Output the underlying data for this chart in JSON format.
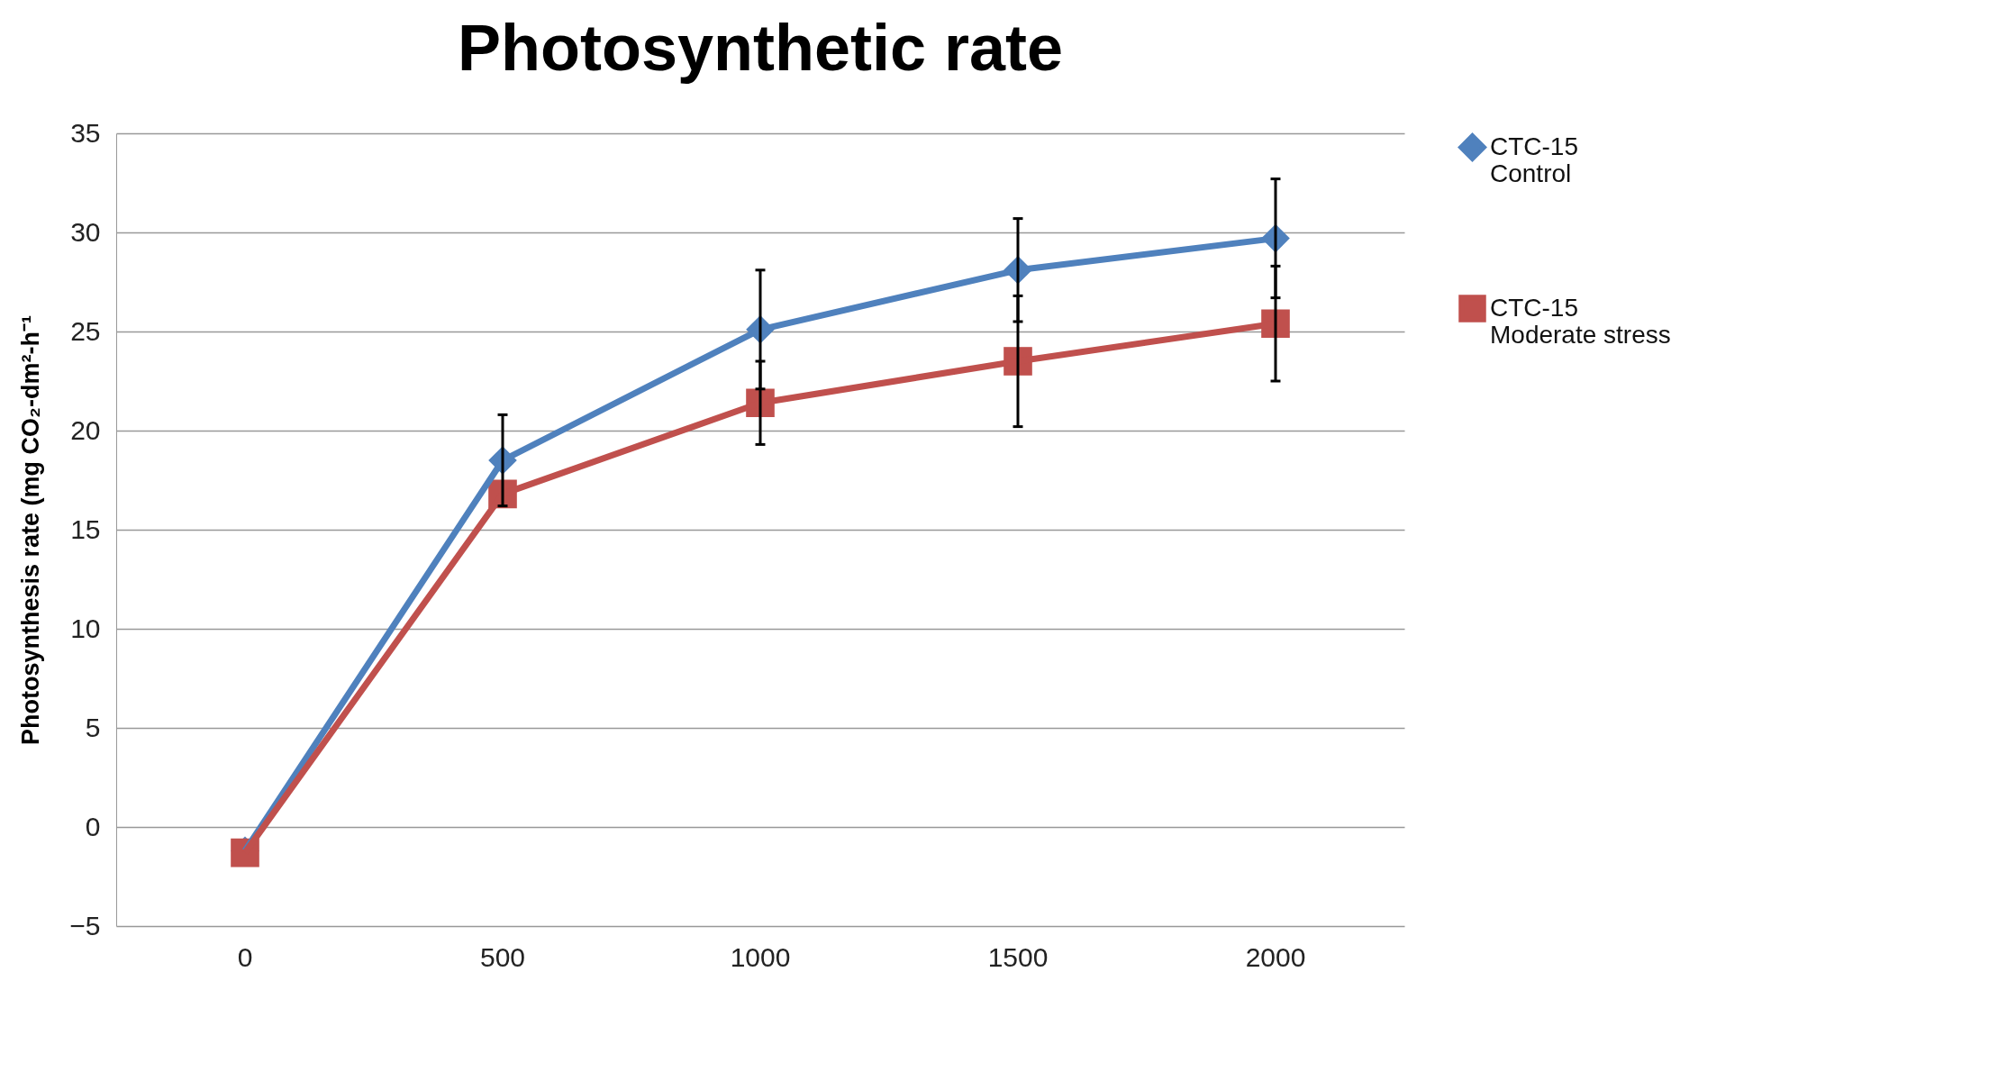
{
  "chart_data": {
    "type": "line",
    "title": "Photosynthetic rate",
    "ylabel": "Photosynthesis rate (mg CO₂-dm²-h⁻¹",
    "categories": [
      "0",
      "500",
      "1000",
      "1500",
      "2000"
    ],
    "ylim": [
      -5,
      35
    ],
    "yticks": [
      -5,
      0,
      5,
      10,
      15,
      20,
      25,
      30,
      35
    ],
    "grid": "y",
    "legend": "right",
    "series": [
      {
        "name": "CTC-15\nControl",
        "color": "#4f81bd",
        "marker": "diamond",
        "values": [
          -1.2,
          18.5,
          25.1,
          28.1,
          29.7
        ],
        "errors": [
          null,
          2.3,
          3.0,
          2.6,
          3.0
        ]
      },
      {
        "name": "CTC-15\nModerate stress",
        "color": "#c0504d",
        "marker": "square",
        "values": [
          -1.3,
          16.8,
          21.4,
          23.5,
          25.4
        ],
        "errors": [
          null,
          null,
          2.1,
          3.3,
          2.9
        ]
      }
    ]
  }
}
